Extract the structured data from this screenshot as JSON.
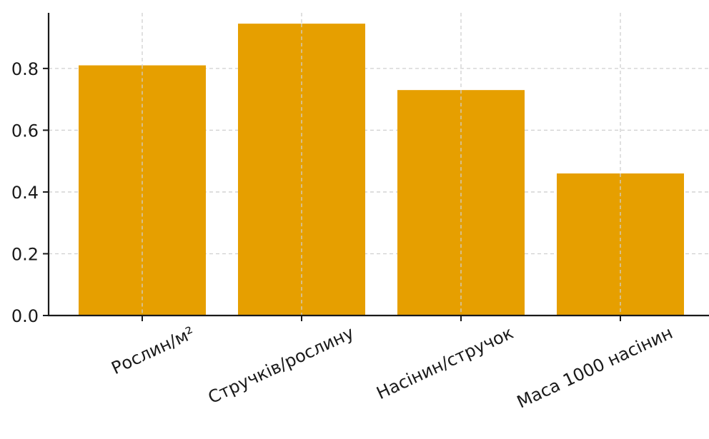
{
  "chart_data": {
    "type": "bar",
    "categories": [
      "Рослин/м²",
      "Стручків/рослину",
      "Насінин/стручок",
      "Маса 1000 насінин"
    ],
    "values": [
      0.81,
      0.945,
      0.73,
      0.46
    ],
    "yticks": [
      "0.0",
      "0.2",
      "0.4",
      "0.6",
      "0.8"
    ],
    "ylim": [
      0,
      0.98
    ],
    "grid": true,
    "bar_color": "#E69F00",
    "title": "",
    "xlabel": "",
    "ylabel": ""
  }
}
